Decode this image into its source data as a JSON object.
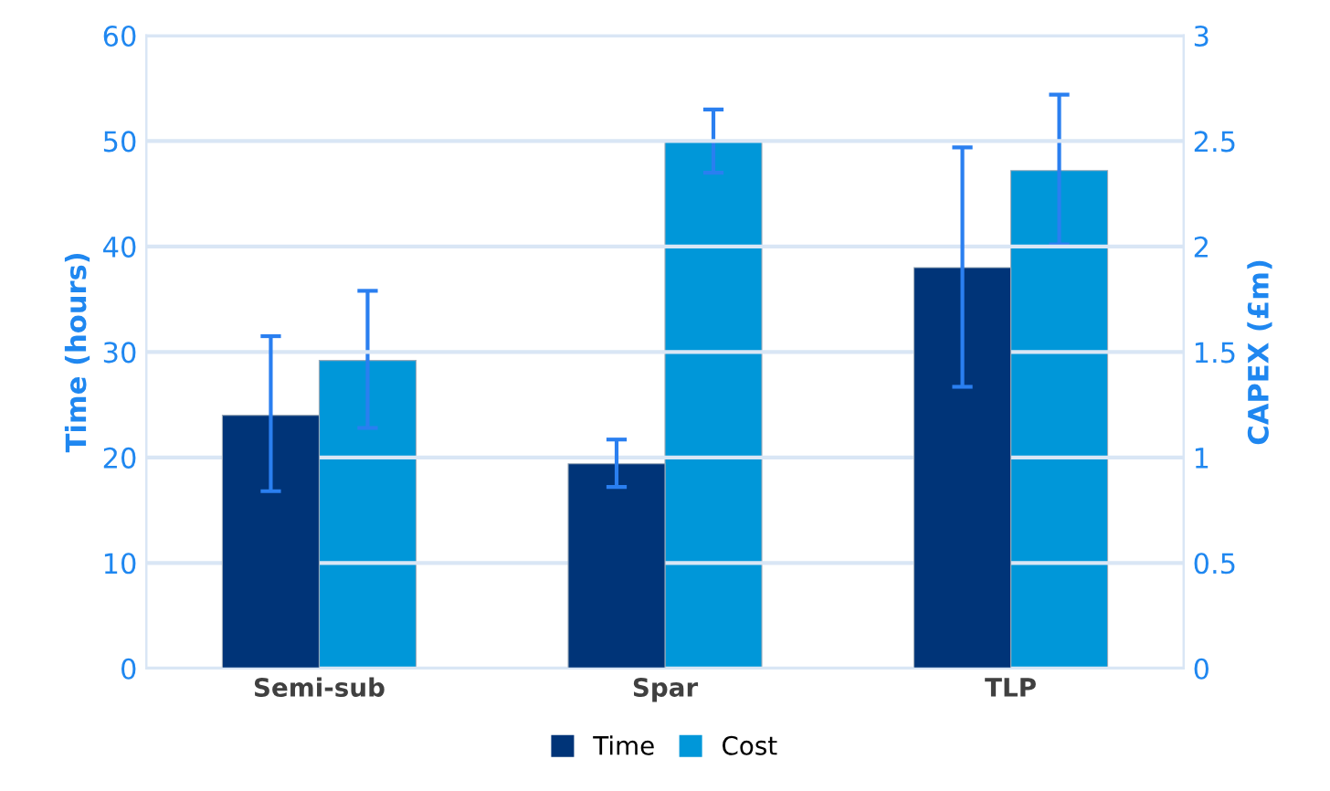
{
  "chart_data": {
    "type": "bar",
    "categories": [
      "Semi-sub",
      "Spar",
      "TLP"
    ],
    "ylabel": "Time (hours)",
    "y2label": "CAPEX (£m)",
    "ylim": [
      0,
      60
    ],
    "yticks": [
      0,
      10,
      20,
      30,
      40,
      50,
      60
    ],
    "y2lim": [
      0,
      3
    ],
    "y2ticks": [
      0,
      0.5,
      1,
      1.5,
      2,
      2.5,
      3
    ],
    "grid": "y",
    "legend": "bottom",
    "series": [
      {
        "name": "Time",
        "color": "#003478",
        "values": [
          24.0,
          19.4,
          38.0
        ],
        "errors": [
          [
            16.8,
            31.5
          ],
          [
            17.2,
            21.7
          ],
          [
            26.7,
            49.4
          ]
        ]
      },
      {
        "name": "Cost",
        "color": "#0097d9",
        "axis": "y2",
        "values": [
          1.46,
          2.5,
          2.36
        ],
        "errors": [
          [
            1.14,
            1.79
          ],
          [
            2.35,
            2.65
          ],
          [
            2.01,
            2.72
          ]
        ]
      }
    ]
  }
}
